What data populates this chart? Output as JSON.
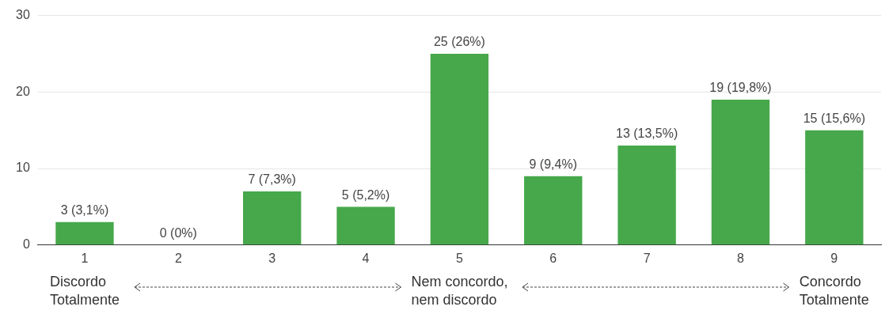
{
  "chart_data": {
    "type": "bar",
    "categories": [
      "1",
      "2",
      "3",
      "4",
      "5",
      "6",
      "7",
      "8",
      "9"
    ],
    "values": [
      3,
      0,
      7,
      5,
      25,
      9,
      13,
      19,
      15
    ],
    "color": "#46a84a",
    "value_labels": [
      "3 (3,1%)",
      "0 (0%)",
      "7 (7,3%)",
      "5 (5,2%)",
      "25 (26%)",
      "9 (9,4%)",
      "13 (13,5%)",
      "19 (19,8%)",
      "15 (15,6%)"
    ],
    "ylim": [
      0,
      30
    ],
    "yticks": [
      0,
      10,
      20,
      30
    ],
    "grid": "y",
    "annotations": [
      "Discordo\nTotalmente",
      "Nem concordo,\nnem discordo",
      "Concordo\nTotalmente"
    ]
  }
}
